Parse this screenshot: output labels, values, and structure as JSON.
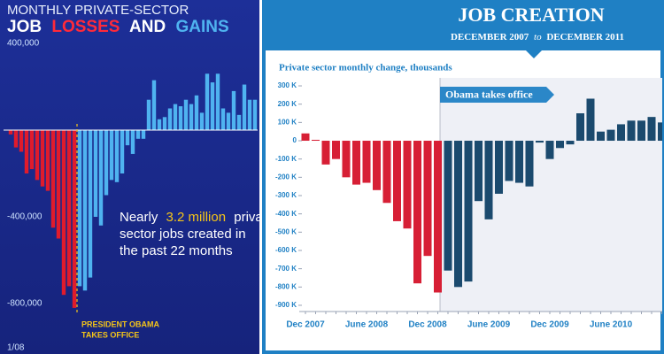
{
  "chart_data": [
    {
      "type": "bar",
      "title": "MONTHLY PRIVATE-SECTOR",
      "title_parts": [
        "JOB",
        "LOSSES",
        "AND",
        "GAINS"
      ],
      "categories": [
        "1/08",
        null,
        null,
        null,
        null,
        null,
        null,
        null,
        null,
        null,
        null,
        null,
        null,
        null,
        null,
        null,
        null,
        null,
        null,
        null,
        null,
        null,
        null,
        null,
        null,
        null,
        null,
        null,
        null,
        null,
        null,
        null,
        null,
        null,
        null,
        null,
        null,
        null,
        null,
        null,
        null,
        null,
        null,
        null,
        null,
        null,
        null
      ],
      "values": [
        -20000,
        -80000,
        -100000,
        -200000,
        -180000,
        -230000,
        -260000,
        -280000,
        -450000,
        -500000,
        -760000,
        -720000,
        -820000,
        -720000,
        -740000,
        -680000,
        -400000,
        -440000,
        -300000,
        -230000,
        -240000,
        -200000,
        -70000,
        -110000,
        -40000,
        -40000,
        140000,
        230000,
        50000,
        60000,
        100000,
        120000,
        110000,
        140000,
        120000,
        160000,
        80000,
        260000,
        220000,
        260000,
        100000,
        80000,
        180000,
        70000,
        210000,
        140000,
        140000
      ],
      "colors": [
        "#e01b2c",
        "#e01b2c",
        "#e01b2c",
        "#e01b2c",
        "#e01b2c",
        "#e01b2c",
        "#e01b2c",
        "#e01b2c",
        "#e01b2c",
        "#e01b2c",
        "#e01b2c",
        "#e01b2c",
        "#e01b2c",
        "#4fb3f0",
        "#4fb3f0",
        "#4fb3f0",
        "#4fb3f0",
        "#4fb3f0",
        "#4fb3f0",
        "#4fb3f0",
        "#4fb3f0",
        "#4fb3f0",
        "#4fb3f0",
        "#4fb3f0",
        "#4fb3f0",
        "#4fb3f0",
        "#4fb3f0",
        "#4fb3f0",
        "#4fb3f0",
        "#4fb3f0",
        "#4fb3f0",
        "#4fb3f0",
        "#4fb3f0",
        "#4fb3f0",
        "#4fb3f0",
        "#4fb3f0",
        "#4fb3f0",
        "#4fb3f0",
        "#4fb3f0",
        "#4fb3f0",
        "#4fb3f0",
        "#4fb3f0",
        "#4fb3f0",
        "#4fb3f0",
        "#4fb3f0",
        "#4fb3f0",
        "#4fb3f0"
      ],
      "ylim": [
        -900000,
        500000
      ],
      "yticks": [
        {
          "value": 400000,
          "label": "400,000"
        },
        {
          "value": -400000,
          "label": "-400,000"
        },
        {
          "value": -800000,
          "label": "-800,000"
        }
      ],
      "grid": false,
      "event_label": [
        "PRESIDENT OBAMA",
        "TAKES OFFICE"
      ],
      "note": [
        "Nearly",
        "3.2 million",
        "private",
        "sector jobs created in",
        "the past 22 months"
      ]
    },
    {
      "type": "bar",
      "title": "JOB CREATION",
      "subtitle": [
        "DECEMBER 2007",
        "to",
        "DECEMBER 2011"
      ],
      "y_label": "Private sector monthly change, thousands",
      "annotation": "Obama takes office",
      "categories": [
        "Dec 2007",
        null,
        null,
        null,
        null,
        null,
        "June 2008",
        null,
        null,
        null,
        null,
        null,
        "Dec 2008",
        null,
        null,
        null,
        null,
        null,
        "June 2009",
        null,
        null,
        null,
        null,
        null,
        "Dec 2009",
        null,
        null,
        null,
        null,
        null,
        "June 2010",
        null,
        null,
        null,
        null,
        null
      ],
      "values": [
        40,
        5,
        -130,
        -100,
        -200,
        -240,
        -230,
        -270,
        -340,
        -440,
        -480,
        -780,
        -630,
        -830,
        -710,
        -800,
        -770,
        -330,
        -430,
        -290,
        -220,
        -230,
        -250,
        -10,
        -100,
        -40,
        -20,
        150,
        230,
        50,
        60,
        90,
        110,
        110,
        130,
        100
      ],
      "colors": [
        "#d71f35",
        "#d71f35",
        "#d71f35",
        "#d71f35",
        "#d71f35",
        "#d71f35",
        "#d71f35",
        "#d71f35",
        "#d71f35",
        "#d71f35",
        "#d71f35",
        "#d71f35",
        "#d71f35",
        "#d71f35",
        "#1b4a6e",
        "#1b4a6e",
        "#1b4a6e",
        "#1b4a6e",
        "#1b4a6e",
        "#1b4a6e",
        "#1b4a6e",
        "#1b4a6e",
        "#1b4a6e",
        "#1b4a6e",
        "#1b4a6e",
        "#1b4a6e",
        "#1b4a6e",
        "#1b4a6e",
        "#1b4a6e",
        "#1b4a6e",
        "#1b4a6e",
        "#1b4a6e",
        "#1b4a6e",
        "#1b4a6e",
        "#1b4a6e",
        "#1b4a6e"
      ],
      "ylim": [
        -950,
        350
      ],
      "yticks": [
        {
          "value": 300,
          "label": "300 K"
        },
        {
          "value": 200,
          "label": "200 K"
        },
        {
          "value": 100,
          "label": "100 K"
        },
        0,
        {
          "value": -100,
          "label": "-100 K"
        },
        {
          "value": -200,
          "label": "-200 K"
        },
        {
          "value": -300,
          "label": "-300 K"
        },
        {
          "value": -400,
          "label": "-400 K"
        },
        {
          "value": -500,
          "label": "-500 K"
        },
        {
          "value": -600,
          "label": "-600 K"
        },
        {
          "value": -700,
          "label": "-700 K"
        },
        {
          "value": -800,
          "label": "-800 K"
        },
        {
          "value": -900,
          "label": "-900 K"
        }
      ],
      "grid": false
    }
  ]
}
